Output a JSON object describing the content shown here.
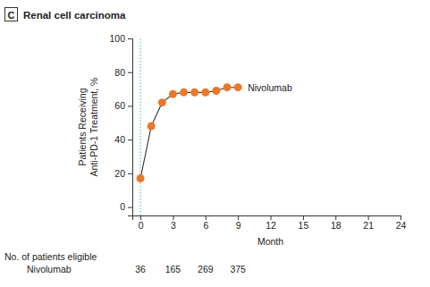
{
  "chart_data": {
    "type": "line",
    "panel": "C",
    "title": "Renal cell carcinoma",
    "x_label": "Month",
    "y_label": [
      "Patients Receiving",
      "Anti-PD-1 Treatment, %"
    ],
    "x": [
      0,
      1,
      2,
      3,
      4,
      5,
      6,
      7,
      8,
      9
    ],
    "series": [
      {
        "name": "Nivolumab",
        "color": "#e8792b",
        "marker": "circle",
        "line_style": "solid",
        "values": [
          17,
          48,
          62,
          67,
          68,
          68,
          68,
          69,
          71,
          71
        ]
      }
    ],
    "xlim": [
      -0.75,
      24
    ],
    "xticks": [
      0,
      3,
      6,
      9,
      12,
      15,
      18,
      21,
      24
    ],
    "ylim": [
      -5,
      100
    ],
    "yticks": [
      0,
      20,
      40,
      60,
      80,
      100
    ],
    "reference_lines": [
      {
        "axis": "x",
        "value": 0,
        "color": "#6fb7d6",
        "line_style": "dotted"
      }
    ],
    "risk_table": {
      "title": "No. of patients eligible",
      "rows": [
        {
          "name": "Nivolumab",
          "x": [
            0,
            3,
            6,
            9
          ],
          "values": [
            36,
            165,
            269,
            375
          ]
        }
      ]
    },
    "grid": false
  }
}
